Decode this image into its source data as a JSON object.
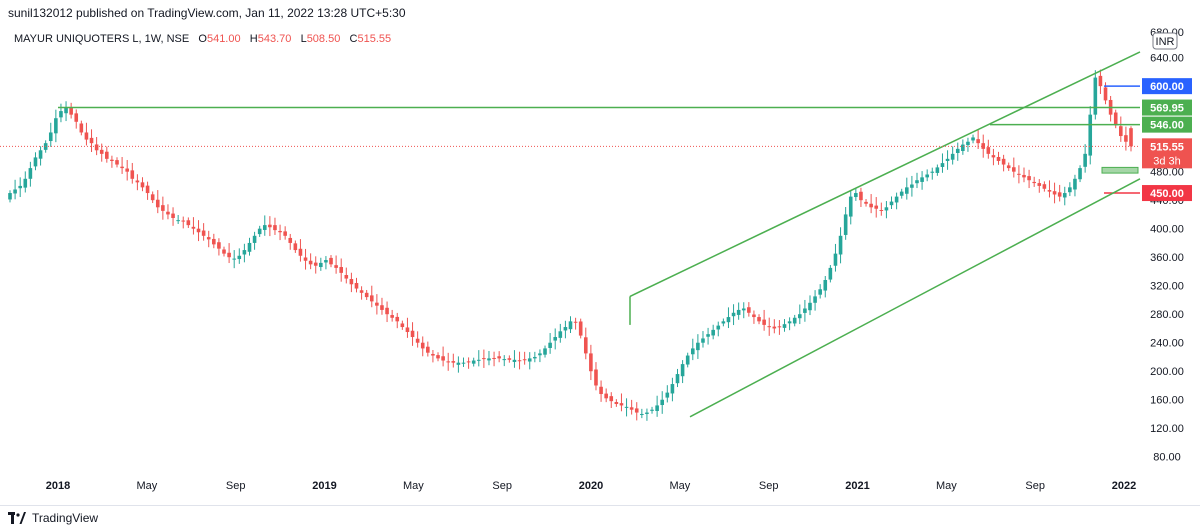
{
  "header": {
    "published": "sunil132012 published on TradingView.com, Jan 11, 2022 13:28 UTC+5:30",
    "symbol": "MAYUR UNIQUOTERS L, 1W, NSE",
    "o_label": "O",
    "o_value": "541.00",
    "h_label": "H",
    "h_value": "543.70",
    "l_label": "L",
    "l_value": "508.50",
    "c_label": "C",
    "c_value": "515.55"
  },
  "footer": {
    "brand": "TradingView"
  },
  "currency_badge": "INR",
  "colors": {
    "up": "#26a69a",
    "down": "#ef5350",
    "trendline": "#4caf50",
    "price_line": "#ef5350",
    "label_blue": "#2962ff",
    "label_green": "#4caf50",
    "label_red": "#f23645"
  },
  "chart_data": {
    "type": "candlestick",
    "ylim": [
      60,
      690
    ],
    "y_ticks": [
      80,
      120,
      160,
      200,
      240,
      280,
      320,
      360,
      400,
      440,
      480,
      600,
      640
    ],
    "y_tick_labels": [
      "80.00",
      "120.00",
      "160.00",
      "200.00",
      "240.00",
      "280.00",
      "320.00",
      "360.00",
      "400.00",
      "440.00",
      "480.00",
      "600.00",
      "640.00"
    ],
    "top_partial_tick_label": "680.00",
    "x_labels": [
      "2018",
      "May",
      "Sep",
      "2019",
      "May",
      "Sep",
      "2020",
      "May",
      "Sep",
      "2021",
      "May",
      "Sep",
      "2022"
    ],
    "x_label_positions_date": [
      "2018-01",
      "2018-05",
      "2018-09",
      "2019-01",
      "2019-05",
      "2019-09",
      "2020-01",
      "2020-05",
      "2020-09",
      "2021-01",
      "2021-05",
      "2021-09",
      "2022-01"
    ],
    "last_price": 515.55,
    "countdown": "3d 3h",
    "price_labels": [
      {
        "value": 600.0,
        "text": "600.00",
        "color": "blue"
      },
      {
        "value": 569.95,
        "text": "569.95",
        "color": "green"
      },
      {
        "value": 546.0,
        "text": "546.00",
        "color": "green"
      },
      {
        "value": 450.0,
        "text": "450.00",
        "color": "red"
      }
    ],
    "weekly_close_approx": [
      450,
      455,
      460,
      470,
      485,
      500,
      510,
      520,
      535,
      555,
      565,
      570,
      560,
      550,
      535,
      525,
      520,
      510,
      505,
      498,
      495,
      490,
      485,
      480,
      470,
      465,
      458,
      450,
      440,
      430,
      425,
      420,
      415,
      412,
      410,
      405,
      400,
      395,
      390,
      385,
      378,
      372,
      365,
      360,
      358,
      362,
      370,
      380,
      390,
      400,
      405,
      402,
      398,
      395,
      390,
      380,
      370,
      362,
      355,
      350,
      348,
      352,
      356,
      350,
      345,
      338,
      330,
      322,
      316,
      310,
      304,
      298,
      292,
      286,
      280,
      275,
      270,
      262,
      255,
      248,
      240,
      232,
      226,
      222,
      218,
      215,
      213,
      212,
      212,
      212,
      213,
      215,
      216,
      217,
      218,
      218,
      218,
      217,
      216,
      216,
      215,
      216,
      218,
      220,
      225,
      232,
      240,
      248,
      256,
      262,
      270,
      268,
      250,
      225,
      200,
      180,
      168,
      162,
      158,
      154,
      152,
      150,
      146,
      142,
      140,
      142,
      146,
      152,
      160,
      170,
      182,
      196,
      210,
      222,
      232,
      240,
      246,
      252,
      258,
      264,
      270,
      276,
      282,
      286,
      288,
      282,
      276,
      270,
      265,
      262,
      260,
      262,
      266,
      270,
      275,
      280,
      288,
      296,
      305,
      315,
      328,
      345,
      365,
      390,
      420,
      445,
      450,
      440,
      435,
      430,
      428,
      425,
      430,
      438,
      445,
      452,
      458,
      462,
      468,
      472,
      476,
      480,
      486,
      492,
      498,
      505,
      512,
      518,
      522,
      528,
      520,
      512,
      505,
      500,
      495,
      490,
      485,
      480,
      476,
      472,
      468,
      464,
      460,
      456,
      452,
      448,
      445,
      450,
      458,
      470,
      485,
      505,
      560,
      612,
      600,
      580,
      560,
      545,
      530,
      522,
      515.55
    ]
  }
}
